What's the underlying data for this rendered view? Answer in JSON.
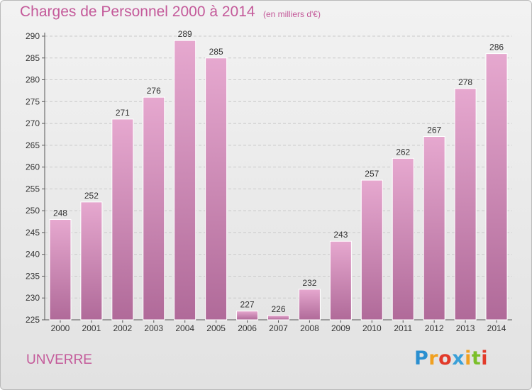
{
  "title": "Charges de Personnel 2000 à 2014",
  "subtitle": "(en milliers d'€)",
  "commune": "UNVERRE",
  "logo": {
    "letters": [
      "P",
      "r",
      "o",
      "x",
      "i",
      "t",
      "i"
    ],
    "colors": [
      "#2a8fd0",
      "#f0a020",
      "#e23a2a",
      "#3aa0d8",
      "#f0a020",
      "#7bbf2a",
      "#e23a2a"
    ]
  },
  "colors": {
    "bar_top": "#e6a8cf",
    "bar_bottom": "#b06a99",
    "text_accent": "#c45a9a"
  },
  "chart_data": {
    "type": "bar",
    "categories": [
      "2000",
      "2001",
      "2002",
      "2003",
      "2004",
      "2005",
      "2006",
      "2007",
      "2008",
      "2009",
      "2010",
      "2011",
      "2012",
      "2013",
      "2014"
    ],
    "values": [
      248,
      252,
      271,
      276,
      289,
      285,
      227,
      226,
      232,
      243,
      257,
      262,
      267,
      278,
      286
    ],
    "ylim": [
      225,
      290
    ],
    "yticks": [
      225,
      230,
      235,
      240,
      245,
      250,
      255,
      260,
      265,
      270,
      275,
      280,
      285,
      290
    ],
    "grid": true,
    "xlabel": "",
    "ylabel": ""
  }
}
